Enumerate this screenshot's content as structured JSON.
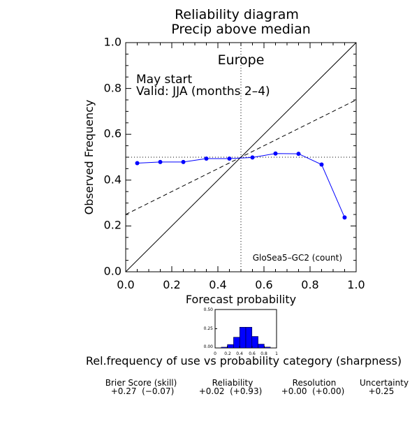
{
  "title": {
    "line1": "Reliability diagram",
    "line2": "Precip above median"
  },
  "region": "Europe",
  "annotation": {
    "line1": "May start",
    "line2": "Valid: JJA (months 2–4)"
  },
  "model_label": "GloSea5–GC2 (count)",
  "chart_data": {
    "type": "line",
    "title": "Reliability diagram Precip above median",
    "xlabel": "Forecast probability",
    "ylabel": "Observed Frequency",
    "xlim": [
      0.0,
      1.0
    ],
    "ylim": [
      0.0,
      1.0
    ],
    "x_ticks": [
      "0.0",
      "0.2",
      "0.4",
      "0.6",
      "0.8",
      "1.0"
    ],
    "y_ticks": [
      "0.0",
      "0.2",
      "0.4",
      "0.6",
      "0.8",
      "1.0"
    ],
    "series": [
      {
        "x": [
          0.05,
          0.15,
          0.25,
          0.35,
          0.45,
          0.55,
          0.65,
          0.75,
          0.85,
          0.95
        ],
        "y": [
          0.474,
          0.479,
          0.479,
          0.494,
          0.494,
          0.499,
          0.516,
          0.515,
          0.468,
          0.237
        ],
        "color": "#0000ff"
      }
    ],
    "reference_lines": {
      "perfect_reliability": [
        [
          0,
          0
        ],
        [
          1,
          1
        ]
      ],
      "no_skill": [
        [
          0,
          0.25
        ],
        [
          1,
          0.75
        ]
      ],
      "climatology_x": 0.5,
      "climatology_y": 0.5
    }
  },
  "sharpness": {
    "type": "bar",
    "ylim": [
      0,
      0.5
    ],
    "y_ticks": [
      "0.50",
      "0.25",
      "0.00"
    ],
    "x_ticks": [
      "0",
      "0.2",
      "0.4",
      "0.6",
      "0.8",
      "1"
    ],
    "categories": [
      0.05,
      0.15,
      0.25,
      0.35,
      0.45,
      0.55,
      0.65,
      0.75,
      0.85,
      0.95
    ],
    "values": [
      0.002,
      0.01,
      0.045,
      0.14,
      0.27,
      0.27,
      0.15,
      0.05,
      0.012,
      0.002
    ],
    "color": "#0000ff",
    "caption": "Rel.frequency of use vs probability category (sharpness)"
  },
  "scores": [
    {
      "label": "Brier Score (skill)",
      "value": "+0.27  (−0.07)"
    },
    {
      "label": "Reliability",
      "value": "+0.02  (+0.93)"
    },
    {
      "label": "Resolution",
      "value": "+0.00  (+0.00)"
    },
    {
      "label": "Uncertainty",
      "value": "+0.25"
    }
  ]
}
